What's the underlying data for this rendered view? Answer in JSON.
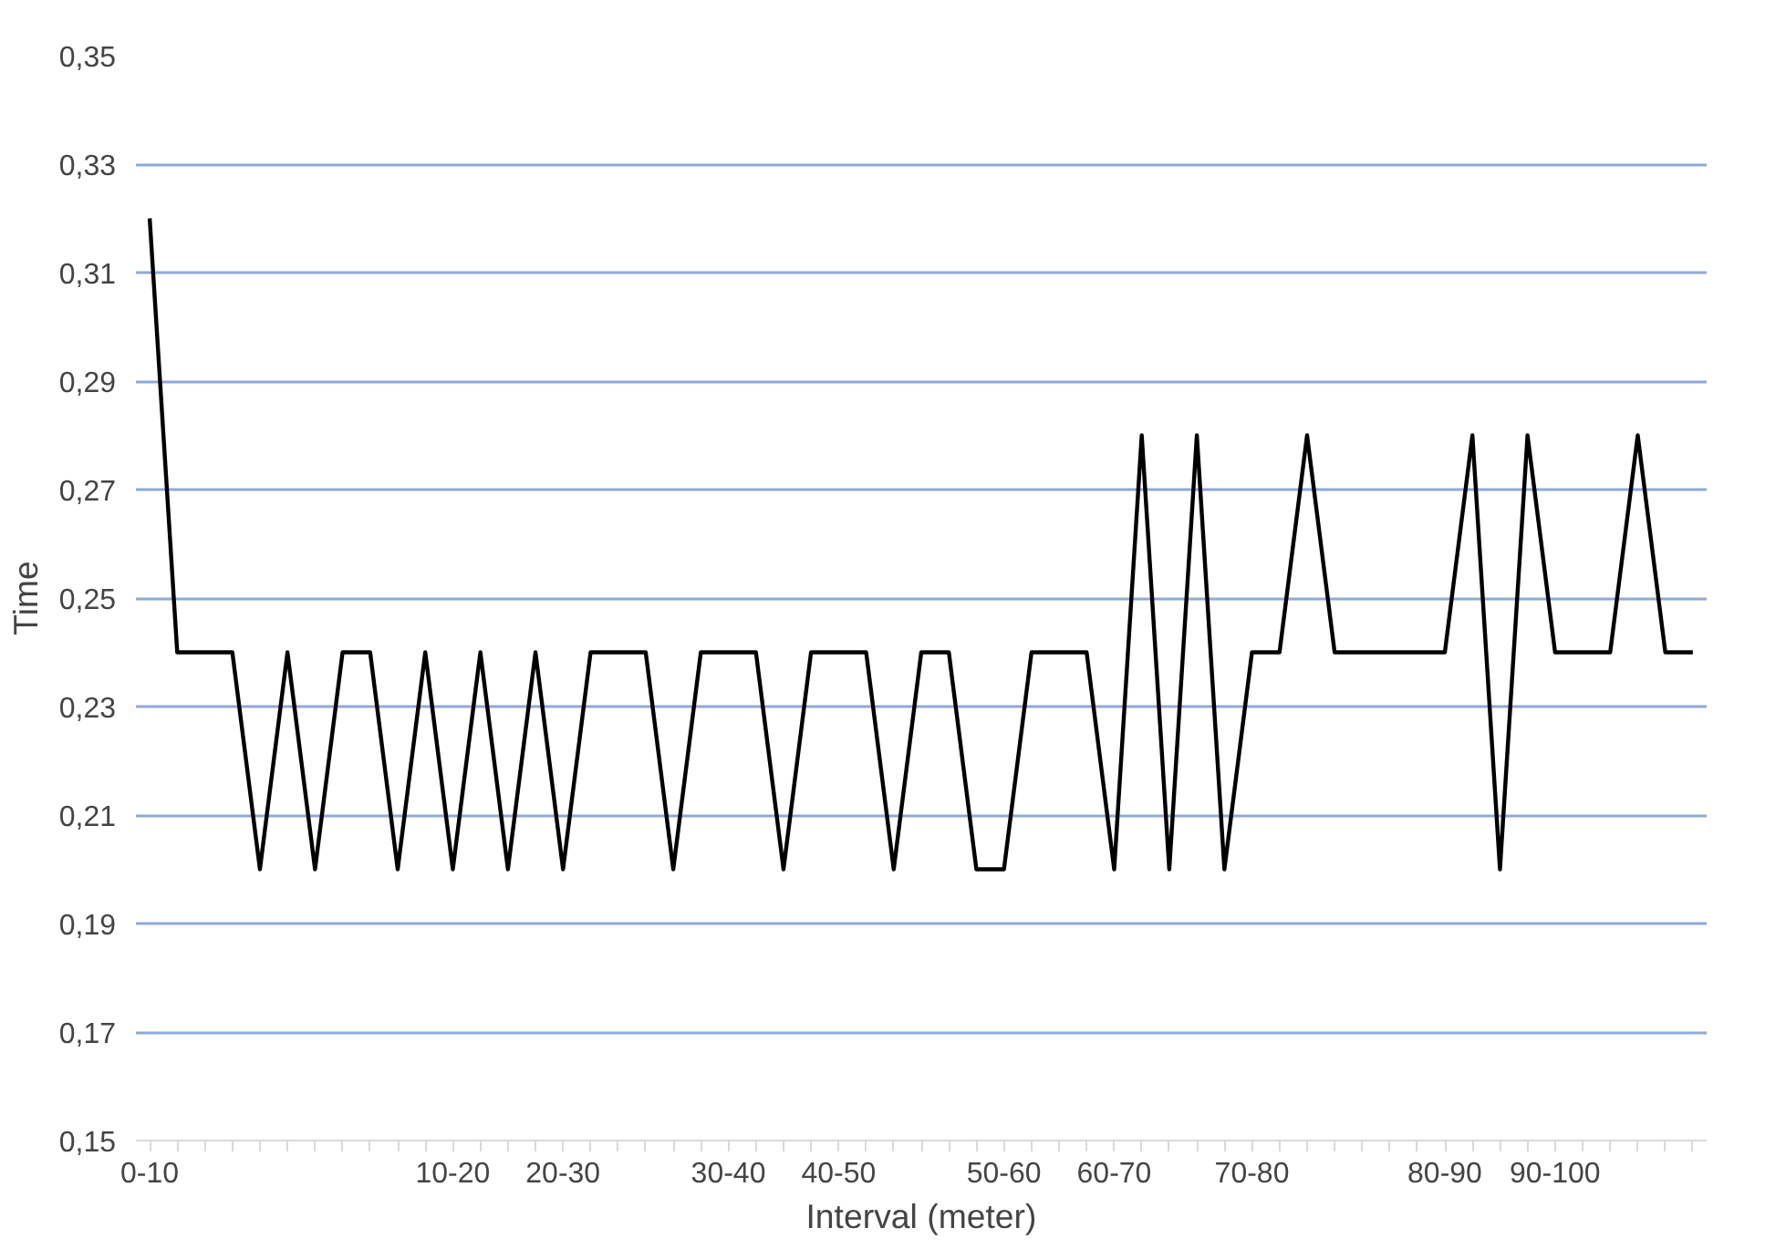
{
  "chart_data": {
    "type": "line",
    "xlabel": "Interval (meter)",
    "ylabel": "Time",
    "categories": [
      "0-10",
      null,
      null,
      null,
      null,
      null,
      null,
      null,
      null,
      null,
      null,
      "10-20",
      null,
      null,
      null,
      "20-30",
      null,
      null,
      null,
      null,
      null,
      "30-40",
      null,
      null,
      null,
      "40-50",
      null,
      null,
      null,
      null,
      null,
      "50-60",
      null,
      null,
      null,
      "60-70",
      null,
      null,
      null,
      null,
      "70-80",
      null,
      null,
      null,
      null,
      null,
      null,
      "80-90",
      null,
      null,
      null,
      "90-100",
      null,
      null,
      null,
      null,
      null
    ],
    "series": [
      {
        "color": "#000000",
        "values": [
          0.32,
          0.24,
          0.24,
          0.24,
          0.2,
          0.24,
          0.2,
          0.24,
          0.24,
          0.2,
          0.24,
          0.2,
          0.24,
          0.2,
          0.24,
          0.2,
          0.24,
          0.24,
          0.24,
          0.2,
          0.24,
          0.24,
          0.24,
          0.2,
          0.24,
          0.24,
          0.24,
          0.2,
          0.24,
          0.24,
          0.2,
          0.2,
          0.24,
          0.24,
          0.24,
          0.2,
          0.28,
          0.2,
          0.28,
          0.2,
          0.24,
          0.24,
          0.28,
          0.24,
          0.24,
          0.24,
          0.24,
          0.24,
          0.28,
          0.2,
          0.28,
          0.24,
          0.24,
          0.24,
          0.28,
          0.24,
          0.24
        ]
      }
    ],
    "ylim": [
      0.15,
      0.35
    ],
    "yticks": [
      {
        "value": 0.15,
        "label": "0,15"
      },
      {
        "value": 0.17,
        "label": "0,17"
      },
      {
        "value": 0.19,
        "label": "0,19"
      },
      {
        "value": 0.21,
        "label": "0,21"
      },
      {
        "value": 0.23,
        "label": "0,23"
      },
      {
        "value": 0.25,
        "label": "0,25"
      },
      {
        "value": 0.27,
        "label": "0,27"
      },
      {
        "value": 0.29,
        "label": "0,29"
      },
      {
        "value": 0.31,
        "label": "0,31"
      },
      {
        "value": 0.33,
        "label": "0,33"
      },
      {
        "value": 0.35,
        "label": "0,35"
      }
    ],
    "grid": "y",
    "marker": "none",
    "line_style": "solid"
  }
}
